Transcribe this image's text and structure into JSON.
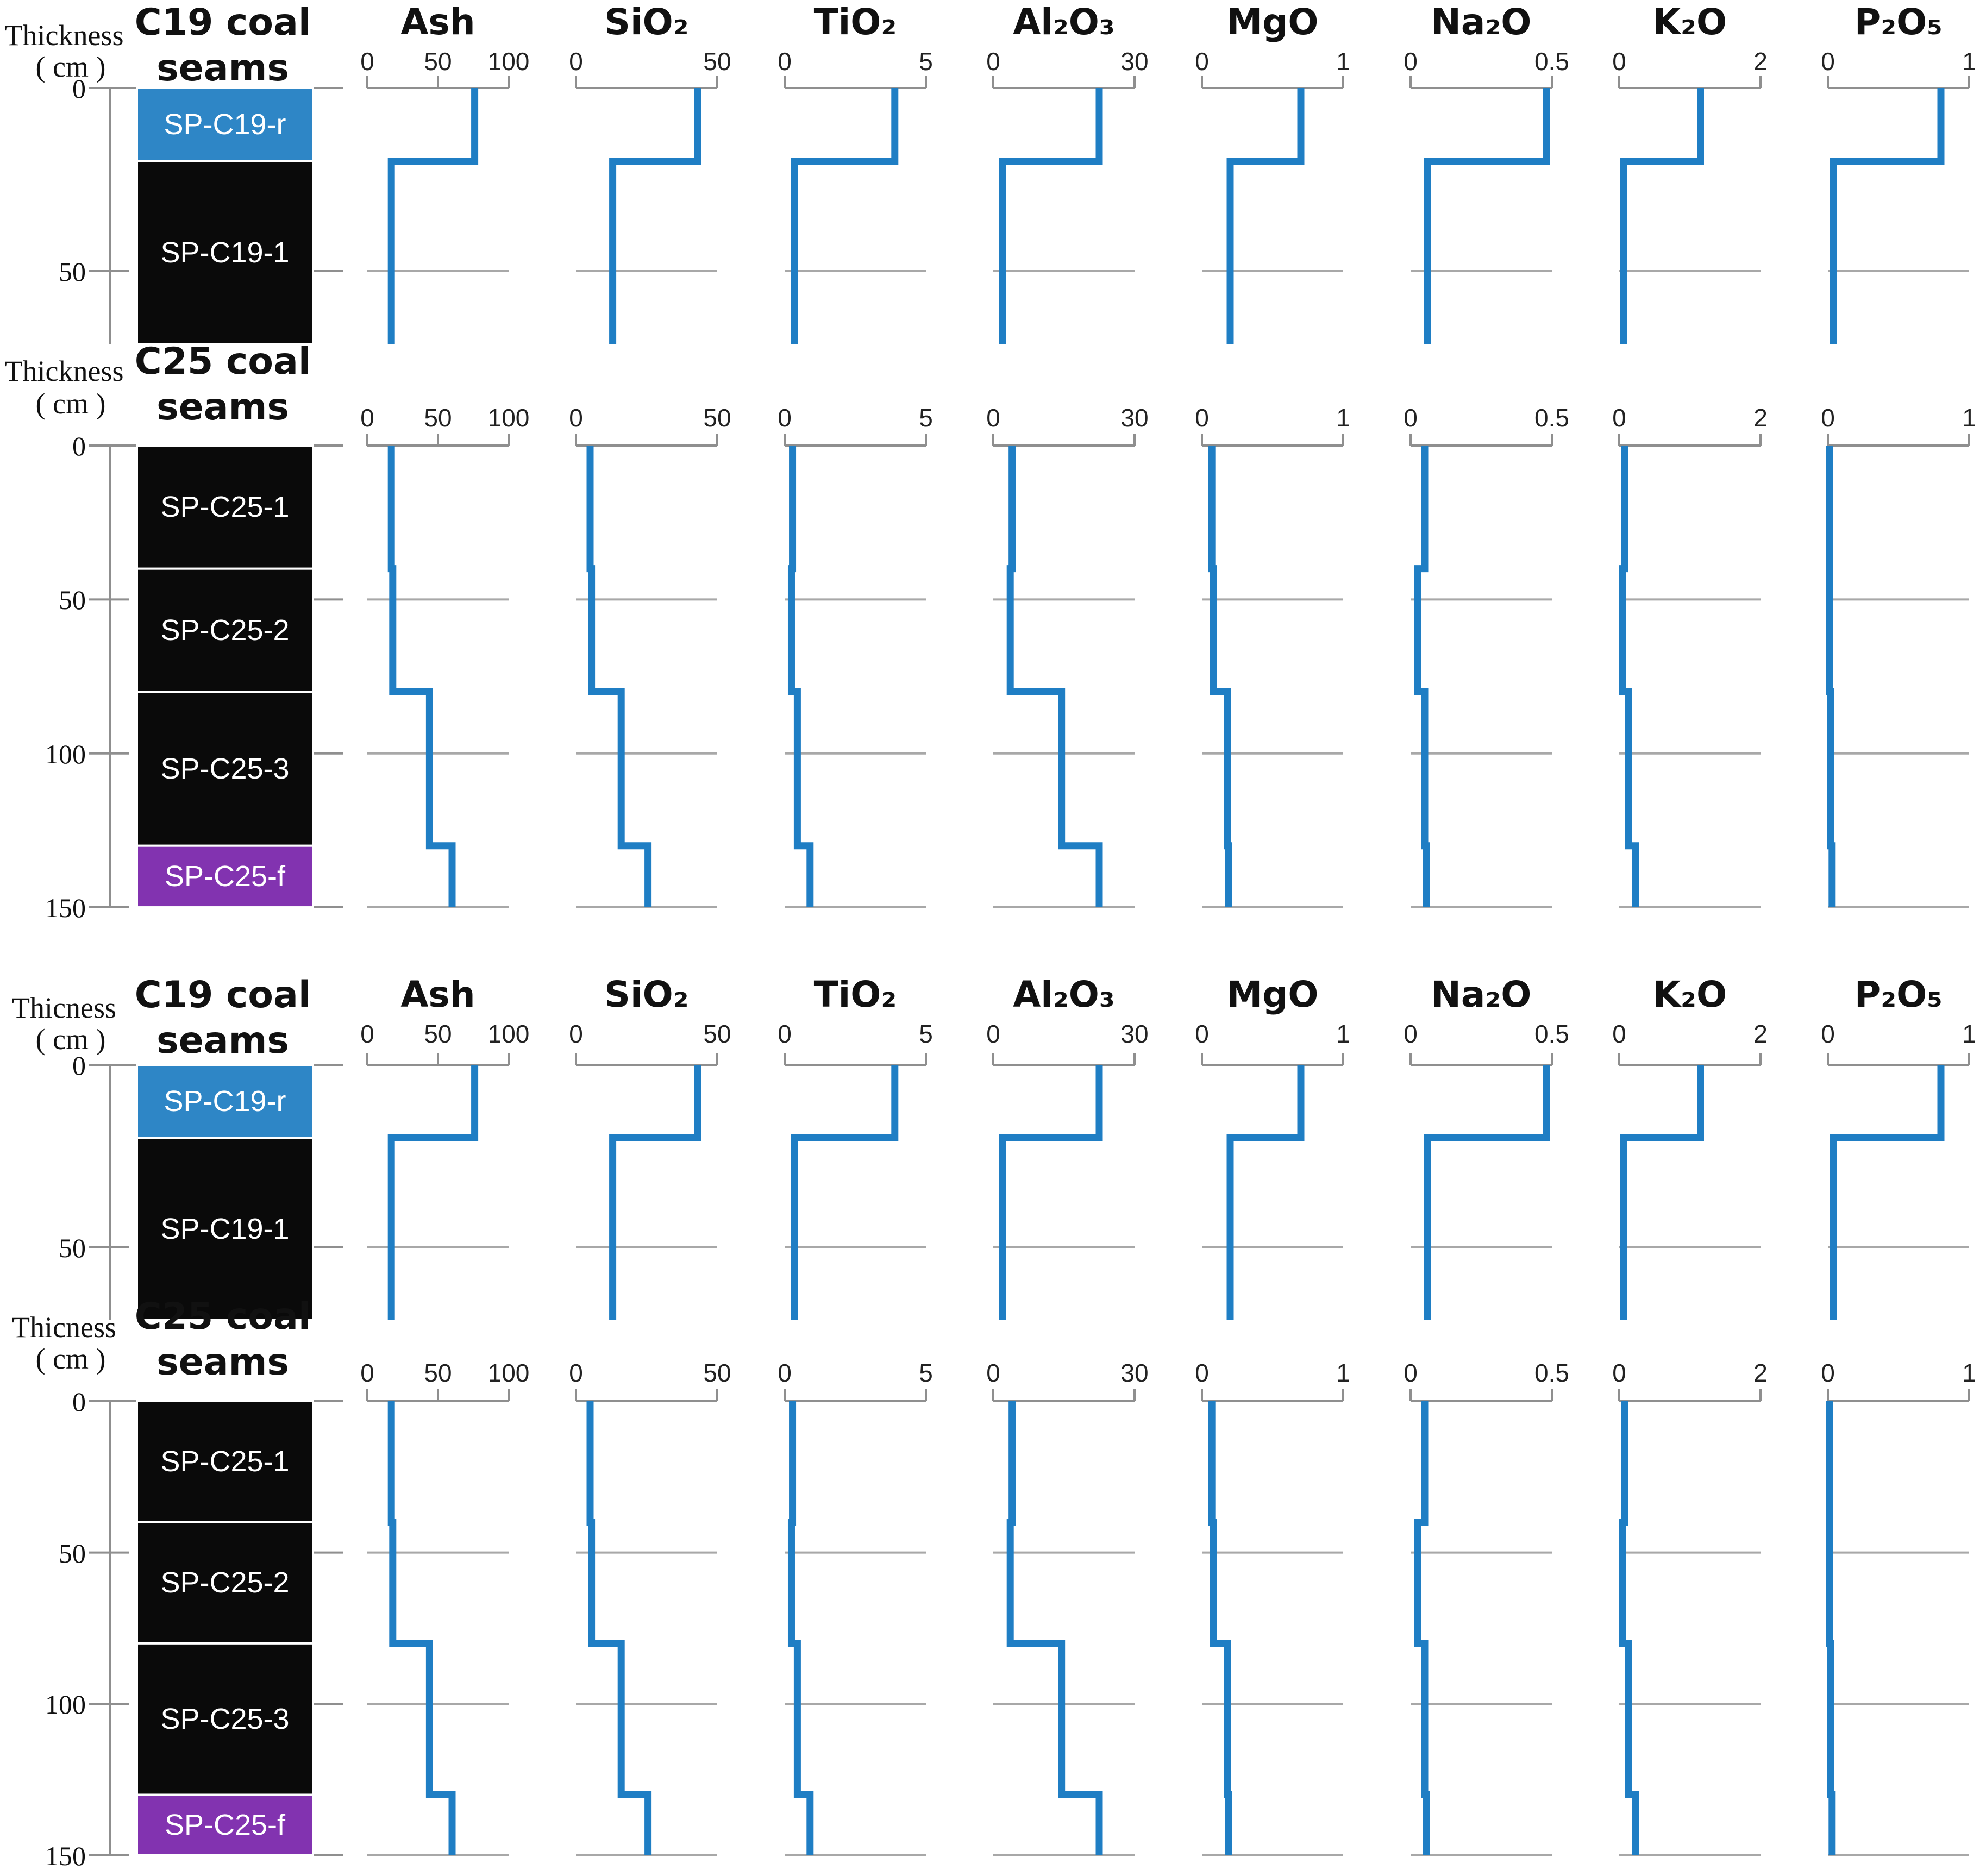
{
  "chart_data": {
    "type": "line",
    "subtype": "stepped depth-profile logs (value vs. thickness) with stratigraphic seam columns",
    "legend_position": "none",
    "grid": "horizontal depth gridlines only",
    "colors": {
      "profile_line": "#1F7EC4",
      "seam_blue": "#2E86C6",
      "seam_black": "#0A0A0A",
      "seam_purple": "#8233B0",
      "axis_gray": "#8F8F8F",
      "grid_gray": "#A8A8A8"
    },
    "rows": [
      {
        "id": "c19-upper",
        "thickness_label": "Thickness",
        "thickness_unit": "( cm )",
        "title_line1": "C19 coal",
        "title_line2": "seams",
        "ylabel": "Thickness (cm)",
        "depth_max": 70,
        "depth_ticks": [
          0,
          50
        ],
        "grid_depths": [
          50
        ],
        "show_panel_titles": true,
        "boundaries": [
          0,
          20,
          70
        ],
        "seams": [
          {
            "label": "SP-C19-r",
            "from": 0,
            "to": 20,
            "color": "seam_blue"
          },
          {
            "label": "SP-C19-1",
            "from": 20,
            "to": 70,
            "color": "seam_black"
          }
        ],
        "panels": [
          {
            "title": "Ash",
            "max": 100,
            "ticks": [
              0,
              50,
              100
            ],
            "values": [
              76,
              17
            ]
          },
          {
            "title": "SiO₂",
            "max": 50,
            "ticks": [
              0,
              50
            ],
            "values": [
              43,
              13
            ]
          },
          {
            "title": "TiO₂",
            "max": 5,
            "ticks": [
              0,
              5
            ],
            "values": [
              3.9,
              0.35
            ]
          },
          {
            "title": "Al₂O₃",
            "max": 30,
            "ticks": [
              0,
              30
            ],
            "values": [
              22.5,
              2
            ]
          },
          {
            "title": "MgO",
            "max": 1,
            "ticks": [
              0,
              1
            ],
            "values": [
              0.7,
              0.2
            ]
          },
          {
            "title": "Na₂O",
            "max": 0.5,
            "ticks": [
              0,
              0.5
            ],
            "values": [
              0.48,
              0.06
            ]
          },
          {
            "title": "K₂O",
            "max": 2,
            "ticks": [
              0,
              2
            ],
            "values": [
              1.15,
              0.06
            ]
          },
          {
            "title": "P₂O₅",
            "max": 1,
            "ticks": [
              0,
              1
            ],
            "values": [
              0.8,
              0.04
            ]
          }
        ]
      },
      {
        "id": "c25-upper",
        "thickness_label": "Thickness",
        "thickness_unit": "( cm )",
        "title_line1": "C25 coal",
        "title_line2": "seams",
        "ylabel": "Thickness (cm)",
        "depth_max": 150,
        "depth_ticks": [
          0,
          50,
          100,
          150
        ],
        "grid_depths": [
          50,
          100,
          150
        ],
        "show_panel_titles": false,
        "boundaries": [
          0,
          40,
          80,
          130,
          150
        ],
        "seams": [
          {
            "label": "SP-C25-1",
            "from": 0,
            "to": 40,
            "color": "seam_black"
          },
          {
            "label": "SP-C25-2",
            "from": 40,
            "to": 80,
            "color": "seam_black"
          },
          {
            "label": "SP-C25-3",
            "from": 80,
            "to": 130,
            "color": "seam_black"
          },
          {
            "label": "SP-C25-f",
            "from": 130,
            "to": 150,
            "color": "seam_purple"
          }
        ],
        "panels": [
          {
            "title": "",
            "max": 100,
            "ticks": [
              0,
              50,
              100
            ],
            "values": [
              17,
              18,
              44,
              60
            ]
          },
          {
            "title": "",
            "max": 50,
            "ticks": [
              0,
              50
            ],
            "values": [
              5,
              5.5,
              16,
              25.5
            ]
          },
          {
            "title": "",
            "max": 5,
            "ticks": [
              0,
              5
            ],
            "values": [
              0.28,
              0.24,
              0.45,
              0.9
            ]
          },
          {
            "title": "",
            "max": 30,
            "ticks": [
              0,
              30
            ],
            "values": [
              4,
              3.6,
              14.5,
              22.5
            ]
          },
          {
            "title": "",
            "max": 1,
            "ticks": [
              0,
              1
            ],
            "values": [
              0.07,
              0.08,
              0.18,
              0.19
            ]
          },
          {
            "title": "",
            "max": 0.5,
            "ticks": [
              0,
              0.5
            ],
            "values": [
              0.05,
              0.025,
              0.05,
              0.055
            ]
          },
          {
            "title": "",
            "max": 2,
            "ticks": [
              0,
              2
            ],
            "values": [
              0.08,
              0.05,
              0.13,
              0.23
            ]
          },
          {
            "title": "",
            "max": 1,
            "ticks": [
              0,
              1
            ],
            "values": [
              0.01,
              0.01,
              0.02,
              0.03
            ]
          }
        ]
      },
      {
        "id": "c19-lower",
        "thickness_label": "Thicness",
        "thickness_unit": "( cm )",
        "title_line1": "C19 coal",
        "title_line2": "seams",
        "ylabel": "Thicness (cm)",
        "depth_max": 70,
        "depth_ticks": [
          0,
          50
        ],
        "grid_depths": [
          50
        ],
        "show_panel_titles": true,
        "boundaries": [
          0,
          20,
          70
        ],
        "seams": [
          {
            "label": "SP-C19-r",
            "from": 0,
            "to": 20,
            "color": "seam_blue"
          },
          {
            "label": "SP-C19-1",
            "from": 20,
            "to": 70,
            "color": "seam_black"
          }
        ],
        "panels": [
          {
            "title": "Ash",
            "max": 100,
            "ticks": [
              0,
              50,
              100
            ],
            "values": [
              76,
              17
            ]
          },
          {
            "title": "SiO₂",
            "max": 50,
            "ticks": [
              0,
              50
            ],
            "values": [
              43,
              13
            ]
          },
          {
            "title": "TiO₂",
            "max": 5,
            "ticks": [
              0,
              5
            ],
            "values": [
              3.9,
              0.35
            ]
          },
          {
            "title": "Al₂O₃",
            "max": 30,
            "ticks": [
              0,
              30
            ],
            "values": [
              22.5,
              2
            ]
          },
          {
            "title": "MgO",
            "max": 1,
            "ticks": [
              0,
              1
            ],
            "values": [
              0.7,
              0.2
            ]
          },
          {
            "title": "Na₂O",
            "max": 0.5,
            "ticks": [
              0,
              0.5
            ],
            "values": [
              0.48,
              0.06
            ]
          },
          {
            "title": "K₂O",
            "max": 2,
            "ticks": [
              0,
              2
            ],
            "values": [
              1.15,
              0.06
            ]
          },
          {
            "title": "P₂O₅",
            "max": 1,
            "ticks": [
              0,
              1
            ],
            "values": [
              0.8,
              0.04
            ]
          }
        ]
      },
      {
        "id": "c25-lower",
        "thickness_label": "Thicness",
        "thickness_unit": "( cm )",
        "title_line1": "C25 coal",
        "title_line2": "seams",
        "ylabel": "Thicness (cm)",
        "depth_max": 150,
        "depth_ticks": [
          0,
          50,
          100,
          150
        ],
        "grid_depths": [
          50,
          100,
          150
        ],
        "show_panel_titles": false,
        "boundaries": [
          0,
          40,
          80,
          130,
          150
        ],
        "seams": [
          {
            "label": "SP-C25-1",
            "from": 0,
            "to": 40,
            "color": "seam_black"
          },
          {
            "label": "SP-C25-2",
            "from": 40,
            "to": 80,
            "color": "seam_black"
          },
          {
            "label": "SP-C25-3",
            "from": 80,
            "to": 130,
            "color": "seam_black"
          },
          {
            "label": "SP-C25-f",
            "from": 130,
            "to": 150,
            "color": "seam_purple"
          }
        ],
        "panels": [
          {
            "title": "",
            "max": 100,
            "ticks": [
              0,
              50,
              100
            ],
            "values": [
              17,
              18,
              44,
              60
            ]
          },
          {
            "title": "",
            "max": 50,
            "ticks": [
              0,
              50
            ],
            "values": [
              5,
              5.5,
              16,
              25.5
            ]
          },
          {
            "title": "",
            "max": 5,
            "ticks": [
              0,
              5
            ],
            "values": [
              0.28,
              0.24,
              0.45,
              0.9
            ]
          },
          {
            "title": "",
            "max": 30,
            "ticks": [
              0,
              30
            ],
            "values": [
              4,
              3.6,
              14.5,
              22.5
            ]
          },
          {
            "title": "",
            "max": 1,
            "ticks": [
              0,
              1
            ],
            "values": [
              0.07,
              0.08,
              0.18,
              0.19
            ]
          },
          {
            "title": "",
            "max": 0.5,
            "ticks": [
              0,
              0.5
            ],
            "values": [
              0.05,
              0.025,
              0.05,
              0.055
            ]
          },
          {
            "title": "",
            "max": 2,
            "ticks": [
              0,
              2
            ],
            "values": [
              0.08,
              0.05,
              0.13,
              0.23
            ]
          },
          {
            "title": "",
            "max": 1,
            "ticks": [
              0,
              1
            ],
            "values": [
              0.01,
              0.01,
              0.02,
              0.03
            ]
          }
        ]
      }
    ]
  }
}
